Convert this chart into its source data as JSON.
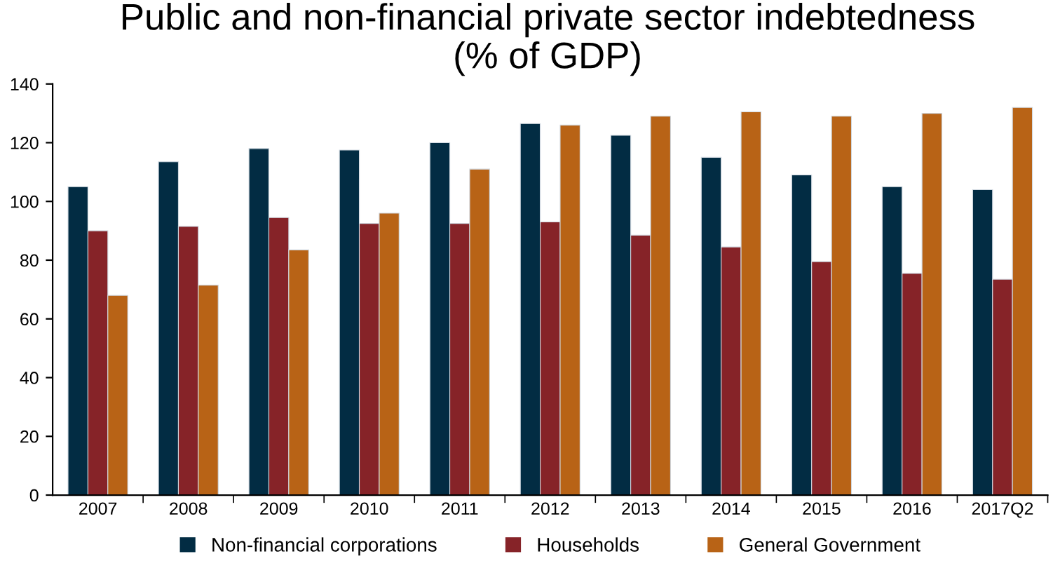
{
  "chart_data": {
    "type": "bar",
    "title": "Public and non-financial private sector indebtedness\n(% of GDP)",
    "categories": [
      "2007",
      "2008",
      "2009",
      "2010",
      "2011",
      "2012",
      "2013",
      "2014",
      "2015",
      "2016",
      "2017Q2"
    ],
    "series": [
      {
        "name": "Non-financial corporations",
        "color": "#022c43",
        "values": [
          105,
          113.5,
          118,
          117.5,
          120,
          126.5,
          122.5,
          115,
          109,
          105,
          104
        ]
      },
      {
        "name": "Households",
        "color": "#862328",
        "values": [
          90,
          91.5,
          94.5,
          92.5,
          92.5,
          93,
          88.5,
          84.5,
          79.5,
          75.5,
          73.5
        ]
      },
      {
        "name": "General Government",
        "color": "#b86316",
        "values": [
          68,
          71.5,
          83.5,
          96,
          111,
          126,
          129,
          130.5,
          129,
          130,
          132
        ]
      }
    ],
    "ylim": [
      0,
      140
    ],
    "yticks": [
      0,
      20,
      40,
      60,
      80,
      100,
      120,
      140
    ],
    "grid": false,
    "legend": "bottom"
  }
}
